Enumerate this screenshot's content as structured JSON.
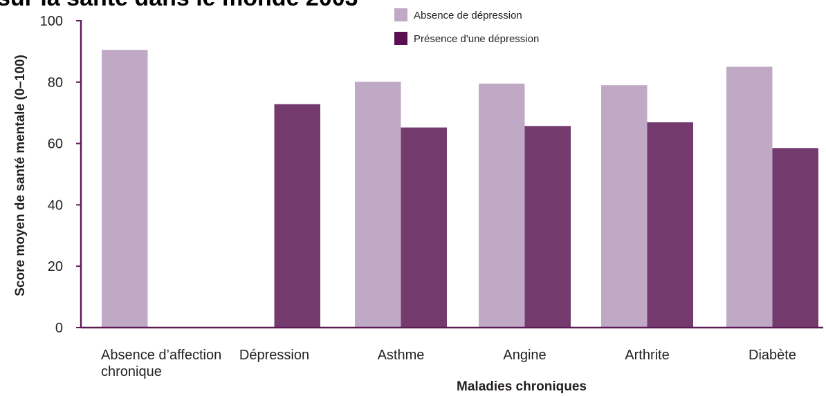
{
  "page": {
    "title_fragment": "sur la santé dans le monde 2003"
  },
  "chart_data": {
    "type": "bar",
    "title": "",
    "xlabel": "Maladies chroniques",
    "ylabel": "Score moyen de santé mentale (0–100)",
    "ylim": [
      0,
      100
    ],
    "yticks": [
      0,
      20,
      40,
      60,
      80,
      100
    ],
    "grid": false,
    "legend_position": "top-center",
    "categories": [
      [
        "Absence d’affection",
        "chronique"
      ],
      [
        "Dépression"
      ],
      [
        "Asthme"
      ],
      [
        "Angine"
      ],
      [
        "Arthrite"
      ],
      [
        "Diabète"
      ]
    ],
    "series": [
      {
        "name": "Absence de dépression",
        "color": "#c0a9c5",
        "values": [
          90.5,
          null,
          80.1,
          79.5,
          79.0,
          85.0
        ]
      },
      {
        "name": "Présence d'une dépression",
        "color": "#743a6e",
        "values": [
          null,
          72.8,
          65.2,
          65.7,
          66.9,
          58.5
        ]
      }
    ],
    "colors": {
      "axis": "#5b1a55",
      "legend_series_2_swatch": "#5b0f52"
    }
  }
}
